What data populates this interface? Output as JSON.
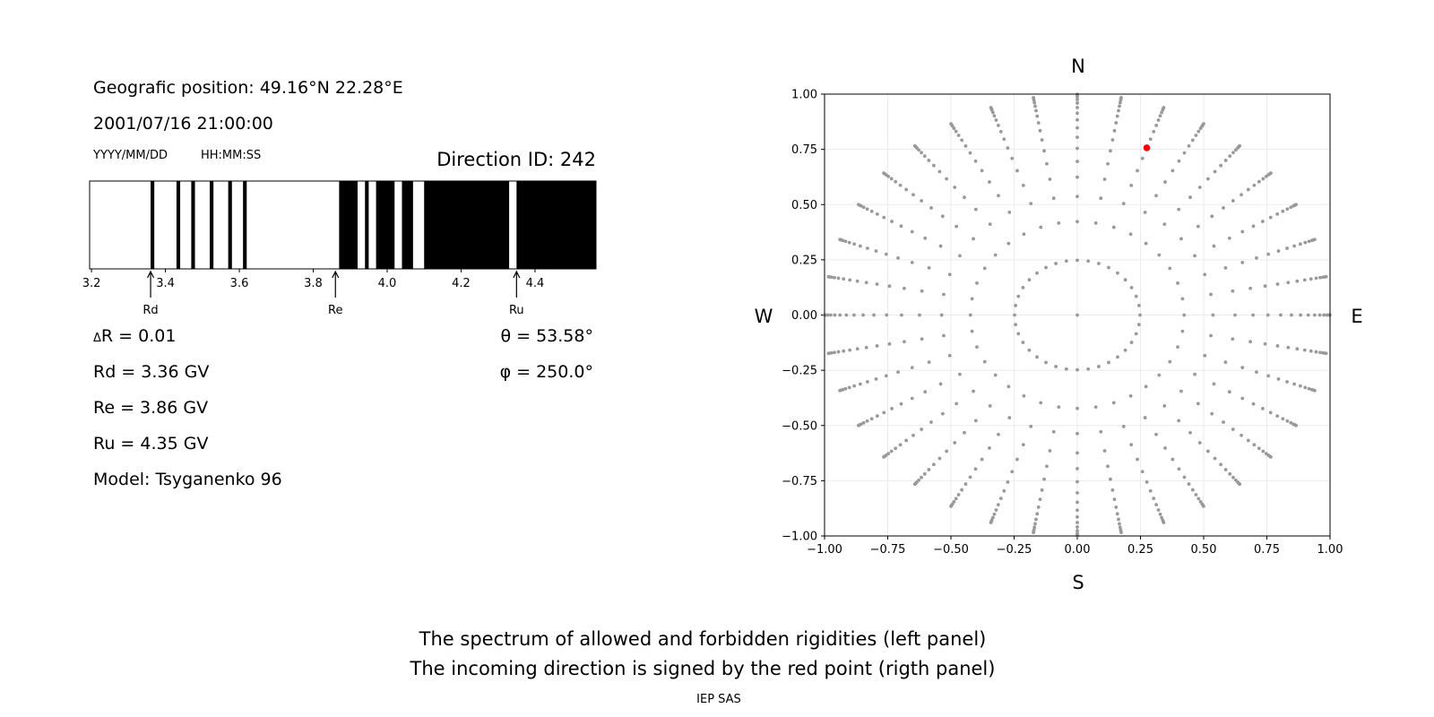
{
  "left_panel": {
    "geo_position": "Geografic position: 49.16°N 22.28°E",
    "datetime": "2001/07/16 21:00:00",
    "date_format_hint": "YYYY/MM/DD",
    "time_format_hint": "HH:MM:SS",
    "direction_id": "Direction ID: 242",
    "delta_r_symbol": "Δ",
    "delta_r": "R = 0.01",
    "rd": "Rd = 3.36 GV",
    "re": "Re = 3.86 GV",
    "ru": "Ru = 4.35 GV",
    "model": "Model: Tsyganenko 96",
    "theta": "θ = 53.58°",
    "phi": "φ = 250.0°"
  },
  "polar_labels": {
    "north": "N",
    "south": "S",
    "west": "W",
    "east": "E"
  },
  "caption": {
    "line1": "The spectrum of allowed and forbidden rigidities (left panel)",
    "line2": "The incoming direction is signed by the red point (rigth panel)",
    "credit": "IEP SAS"
  },
  "chart_data": [
    {
      "type": "bar",
      "description_kind": "rigidity spectrum (black = forbidden, white = allowed)",
      "xlim": [
        3.195,
        4.565
      ],
      "xticks": [
        3.2,
        3.4,
        3.6,
        3.8,
        4.0,
        4.2,
        4.4
      ],
      "xtick_labels": [
        "3.2",
        "3.4",
        "3.6",
        "3.8",
        "4.0",
        "4.2",
        "4.4"
      ],
      "forbidden_bands": [
        [
          3.36,
          3.37
        ],
        [
          3.43,
          3.44
        ],
        [
          3.47,
          3.48
        ],
        [
          3.52,
          3.53
        ],
        [
          3.57,
          3.58
        ],
        [
          3.61,
          3.62
        ],
        [
          3.87,
          3.92
        ],
        [
          3.94,
          3.95
        ],
        [
          3.97,
          4.02
        ],
        [
          4.04,
          4.07
        ],
        [
          4.1,
          4.33
        ],
        [
          4.35,
          4.565
        ]
      ],
      "markers": [
        {
          "label": "Rd",
          "value": 3.36
        },
        {
          "label": "Re",
          "value": 3.86
        },
        {
          "label": "Ru",
          "value": 4.35
        }
      ],
      "colors": {
        "forbidden": "#000000",
        "allowed": "#ffffff"
      }
    },
    {
      "type": "scatter",
      "xlim": [
        -1,
        1
      ],
      "ylim": [
        -1,
        1
      ],
      "ticks": [
        -1.0,
        -0.75,
        -0.5,
        -0.25,
        0.0,
        0.25,
        0.5,
        0.75,
        1.0
      ],
      "tick_labels": [
        "−1.00",
        "−0.75",
        "−0.50",
        "−0.25",
        "0.00",
        "0.25",
        "0.50",
        "0.75",
        "1.00"
      ],
      "grid": true,
      "directions_grid": {
        "azimuth_step_deg": 10,
        "zenith_bands_equal_solid_angle": 16,
        "includes_zenith": true
      },
      "highlight": {
        "x": 0.275,
        "y": 0.757,
        "theta_deg": 53.58,
        "phi_deg": 250.0
      },
      "colors": {
        "points": "#999999",
        "highlight": "#ff0000",
        "grid": "#ebebeb"
      }
    }
  ]
}
